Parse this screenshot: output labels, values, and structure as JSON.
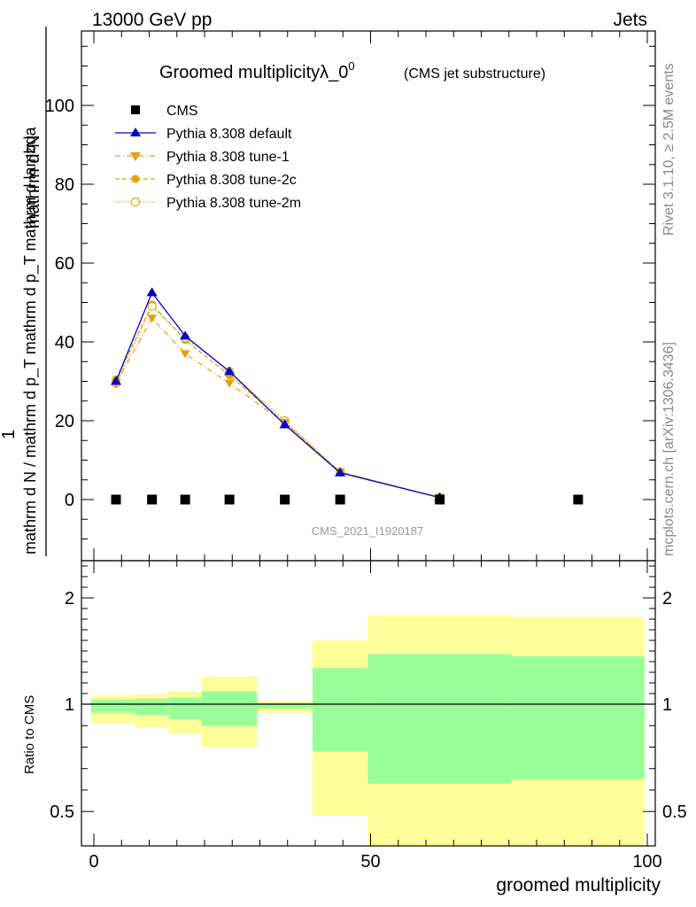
{
  "header": {
    "left": "13000 GeV pp",
    "right": "Jets"
  },
  "side": {
    "rivet": "Rivet 3.1.10, ≥ 2.5M events",
    "mcplots": "mcplots.cern.ch [arXiv:1306.3436]"
  },
  "colors": {
    "cms": "#000000",
    "default": "#0000cc",
    "tunes": "#e3a10c",
    "band_yellow": "#ffff99",
    "band_green": "#99ff99"
  },
  "chart_data": [
    {
      "type": "line",
      "title": "Groomed multiplicityλ_0",
      "title_sup": "0",
      "subtitle": "(CMS jet substructure)",
      "watermark": "CMS_2021_I1920187",
      "ylabel_top": "1",
      "ylabel_num": "mathrm d²N",
      "ylabel_den": "mathrm d N / mathrm d p_T mathrm d p_T mathrm d lambda",
      "xlim": [
        0,
        100
      ],
      "ylim": [
        -14,
        118
      ],
      "yticks": [
        0,
        20,
        40,
        60,
        80,
        100
      ],
      "x": [
        4,
        10.5,
        16.5,
        24.5,
        34.5,
        44.5,
        62.5,
        87.5
      ],
      "series": [
        {
          "name": "CMS",
          "marker": "square",
          "values": [
            0,
            0,
            0,
            0,
            0,
            0,
            0,
            0
          ]
        },
        {
          "name": "Pythia 8.308 default",
          "marker": "triangle-up",
          "line": "solid",
          "x": [
            4,
            10.5,
            16.5,
            24.5,
            34.5,
            44.5,
            62.5
          ],
          "values": [
            30,
            52.5,
            41.5,
            32.5,
            19,
            6.8,
            0.5
          ]
        },
        {
          "name": "Pythia 8.308 tune-1",
          "marker": "triangle-down",
          "line": "dashdot",
          "x": [
            4,
            10.5,
            16.5,
            24.5,
            34.5,
            44.5,
            62.5
          ],
          "values": [
            29.5,
            46,
            37,
            29.5,
            19.5,
            7,
            0.5
          ]
        },
        {
          "name": "Pythia 8.308 tune-2c",
          "marker": "circle",
          "line": "dashed",
          "x": [
            4,
            10.5,
            16.5,
            24.5,
            34.5,
            44.5,
            62.5
          ],
          "values": [
            30.5,
            49.5,
            40.5,
            31.5,
            19.5,
            7,
            0.5
          ]
        },
        {
          "name": "Pythia 8.308 tune-2m",
          "marker": "circle-open",
          "line": "dotted",
          "x": [
            4,
            10.5,
            16.5,
            24.5,
            34.5,
            44.5,
            62.5
          ],
          "values": [
            29.5,
            49,
            41,
            32.5,
            20,
            7,
            0.5
          ]
        }
      ]
    },
    {
      "type": "area",
      "ylabel": "Ratio to CMS",
      "xlabel": "groomed multiplicity",
      "xlim": [
        0,
        100
      ],
      "ylim": [
        0.34,
        2.34
      ],
      "yticks": [
        0.5,
        1,
        2
      ],
      "ytick_labels": [
        "0.5",
        "1",
        "2"
      ],
      "xticks": [
        0,
        50,
        100
      ],
      "bins": [
        {
          "lo": -0.5,
          "hi": 7.5,
          "yellow": [
            0.91,
            1.08
          ],
          "green": [
            0.96,
            1.04
          ]
        },
        {
          "lo": 7.5,
          "hi": 13.5,
          "yellow": [
            0.89,
            1.09
          ],
          "green": [
            0.95,
            1.05
          ]
        },
        {
          "lo": 13.5,
          "hi": 19.5,
          "yellow": [
            0.86,
            1.12
          ],
          "green": [
            0.93,
            1.06
          ]
        },
        {
          "lo": 19.5,
          "hi": 29.5,
          "yellow": [
            0.8,
            1.26
          ],
          "green": [
            0.9,
            1.12
          ]
        },
        {
          "lo": 29.5,
          "hi": 39.5,
          "yellow": [
            0.96,
            1.03
          ],
          "green": [
            0.98,
            1.01
          ]
        },
        {
          "lo": 39.5,
          "hi": 49.5,
          "yellow": [
            0.48,
            1.6
          ],
          "green": [
            0.78,
            1.34
          ]
        },
        {
          "lo": 49.5,
          "hi": 75.5,
          "yellow": [
            0.34,
            1.84
          ],
          "green": [
            0.63,
            1.47
          ]
        },
        {
          "lo": 75.5,
          "hi": 99.5,
          "yellow": [
            0.34,
            1.82
          ],
          "green": [
            0.65,
            1.45
          ]
        }
      ]
    }
  ]
}
